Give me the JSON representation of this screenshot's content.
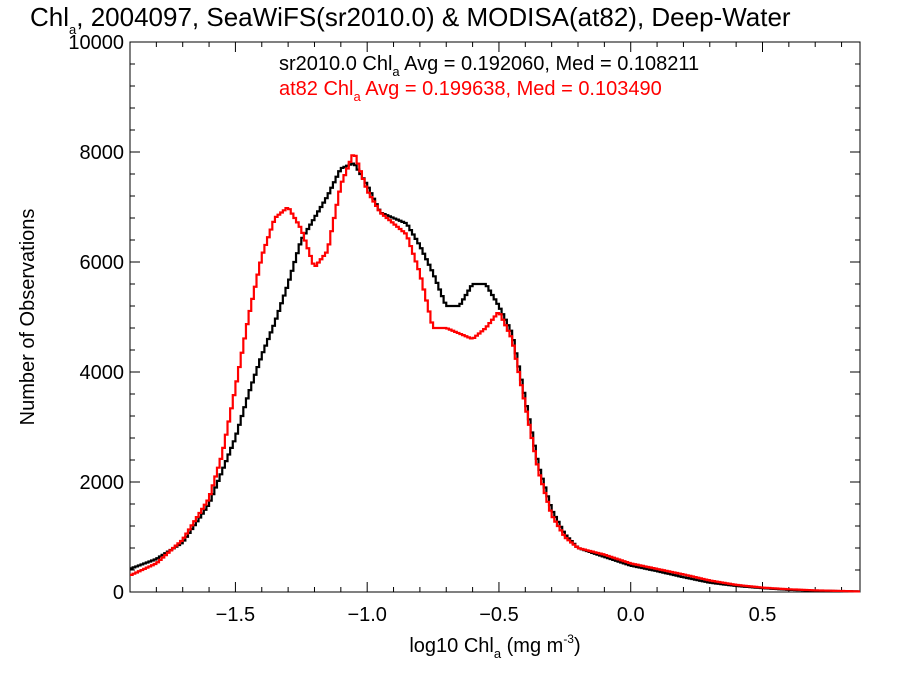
{
  "chart_data": {
    "type": "histogram-step",
    "title": {
      "prefix": "Chl",
      "prefix_sub": "a",
      "rest": ", 2004097, SeaWiFS(sr2010.0) & MODISA(at82), Deep-Water"
    },
    "xlabel": {
      "pre": "log10 Chl",
      "sub": "a",
      "mid": " (mg m",
      "sup": "-3",
      "post": ")"
    },
    "ylabel": "Number of Observations",
    "xlim": [
      -1.9,
      0.87
    ],
    "ylim": [
      0,
      10000
    ],
    "x_ticks": [
      -1.5,
      -1.0,
      -0.5,
      0.0,
      0.5
    ],
    "x_tick_labels": [
      "−1.5",
      "−1.0",
      "−0.5",
      "0.0",
      "0.5"
    ],
    "y_ticks": [
      0,
      2000,
      4000,
      6000,
      8000,
      10000
    ],
    "y_tick_labels": [
      "0",
      "2000",
      "4000",
      "6000",
      "8000",
      "10000"
    ],
    "legend": [
      {
        "pre": "sr2010.0 Chl",
        "sub": "a",
        "post": " Avg = 0.192060, Med = 0.108211",
        "color": "#000000"
      },
      {
        "pre": "at82 Chl",
        "sub": "a",
        "post": " Avg = 0.199638, Med = 0.103490",
        "color": "#ff0000"
      }
    ],
    "legend_position": "top-center",
    "grid": false,
    "series": [
      {
        "name": "sr2010.0",
        "color": "#000000",
        "x": [
          -1.9,
          -1.8,
          -1.7,
          -1.6,
          -1.5,
          -1.45,
          -1.4,
          -1.35,
          -1.3,
          -1.25,
          -1.2,
          -1.15,
          -1.1,
          -1.05,
          -1.0,
          -0.95,
          -0.9,
          -0.85,
          -0.8,
          -0.75,
          -0.7,
          -0.65,
          -0.6,
          -0.55,
          -0.5,
          -0.45,
          -0.4,
          -0.35,
          -0.3,
          -0.25,
          -0.2,
          -0.1,
          0.0,
          0.1,
          0.2,
          0.3,
          0.4,
          0.5,
          0.6,
          0.7,
          0.87
        ],
        "y": [
          420,
          600,
          900,
          1600,
          2800,
          3600,
          4300,
          4900,
          5600,
          6400,
          6800,
          7200,
          7700,
          7800,
          7400,
          6900,
          6800,
          6700,
          6300,
          5800,
          5200,
          5200,
          5600,
          5600,
          5200,
          4700,
          3500,
          2300,
          1500,
          1050,
          800,
          640,
          480,
          380,
          270,
          170,
          110,
          70,
          40,
          25,
          10
        ]
      },
      {
        "name": "at82",
        "color": "#ff0000",
        "x": [
          -1.9,
          -1.8,
          -1.7,
          -1.6,
          -1.55,
          -1.5,
          -1.45,
          -1.4,
          -1.35,
          -1.3,
          -1.25,
          -1.2,
          -1.15,
          -1.1,
          -1.05,
          -1.0,
          -0.95,
          -0.9,
          -0.85,
          -0.8,
          -0.75,
          -0.7,
          -0.65,
          -0.6,
          -0.55,
          -0.5,
          -0.45,
          -0.4,
          -0.35,
          -0.3,
          -0.25,
          -0.2,
          -0.1,
          0.0,
          0.1,
          0.2,
          0.3,
          0.4,
          0.5,
          0.6,
          0.7,
          0.87
        ],
        "y": [
          300,
          520,
          950,
          1700,
          2500,
          3700,
          5000,
          6100,
          6800,
          7000,
          6600,
          5900,
          6200,
          7400,
          8000,
          7300,
          6900,
          6700,
          6500,
          5800,
          4800,
          4800,
          4700,
          4600,
          4800,
          5100,
          4600,
          3400,
          2200,
          1400,
          1000,
          800,
          680,
          520,
          420,
          320,
          210,
          130,
          80,
          50,
          30,
          10
        ]
      }
    ]
  }
}
